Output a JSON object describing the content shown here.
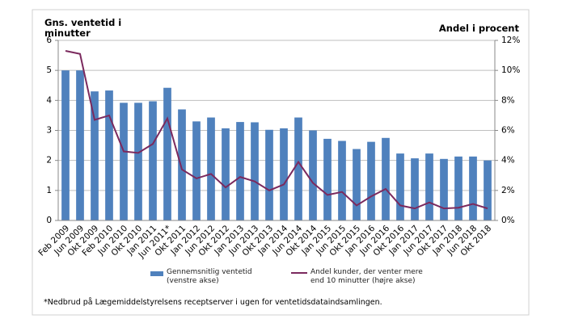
{
  "chart_data": {
    "type": "bar",
    "left_axis_title": "Gns. ventetid i minutter",
    "right_axis_title": "Andel i procent",
    "footnote": "*Nedbrud på Lægemiddelstyrelsens receptserver i ugen for ventetidsdataindsamlingen.",
    "categories": [
      "Feb 2009",
      "Jun 2009",
      "Okt 2009",
      "Feb 2010",
      "Jun 2010",
      "Okt 2010",
      "Jan 2011",
      "Jun 2011*",
      "Okt 2011",
      "Jan 2012",
      "Jun 2012",
      "Okt 2012",
      "Jan 2013",
      "Jun 2013",
      "Okt 2013",
      "Jan 2014",
      "Jun 2014",
      "Okt 2014",
      "Jan 2015",
      "Jun 2015",
      "Okt 2015",
      "Jan 2016",
      "Jun 2016",
      "Okt 2016",
      "Jan 2017",
      "Jun 2017",
      "Okt 2017",
      "Jan 2018",
      "Jun 2018",
      "Okt 2018"
    ],
    "series": [
      {
        "name": "Gennemsnitlig ventetid (venstre akse)",
        "type": "bar",
        "color": "#4f81bd",
        "values": [
          5.0,
          5.0,
          4.3,
          4.33,
          3.92,
          3.92,
          3.97,
          4.42,
          3.7,
          3.3,
          3.43,
          3.07,
          3.28,
          3.27,
          3.02,
          3.07,
          3.43,
          3.0,
          2.72,
          2.65,
          2.38,
          2.62,
          2.75,
          2.23,
          2.07,
          2.23,
          2.05,
          2.13,
          2.13,
          2.0
        ]
      },
      {
        "name": "Andel kunder, der venter mere end 10 minutter (højre akse)",
        "type": "line",
        "axis": "y2",
        "color": "#7b2a5e",
        "values": [
          11.3,
          11.1,
          6.7,
          7.0,
          4.6,
          4.5,
          5.1,
          6.8,
          3.4,
          2.8,
          3.1,
          2.2,
          2.9,
          2.6,
          2.0,
          2.4,
          3.9,
          2.5,
          1.7,
          1.9,
          1.0,
          1.6,
          2.1,
          1.0,
          0.8,
          1.2,
          0.8,
          0.85,
          1.1,
          0.8
        ]
      }
    ],
    "ylim": [
      0,
      6
    ],
    "yticks": [
      0,
      1,
      2,
      3,
      4,
      5,
      6
    ],
    "y2lim": [
      0,
      12
    ],
    "y2ticks": [
      {
        "value": 0,
        "label": "0%"
      },
      {
        "value": 2,
        "label": "2%"
      },
      {
        "value": 4,
        "label": "4%"
      },
      {
        "value": 6,
        "label": "6%"
      },
      {
        "value": 8,
        "label": "8%"
      },
      {
        "value": 10,
        "label": "10%"
      },
      {
        "value": 12,
        "label": "12%"
      }
    ],
    "grid": true
  }
}
